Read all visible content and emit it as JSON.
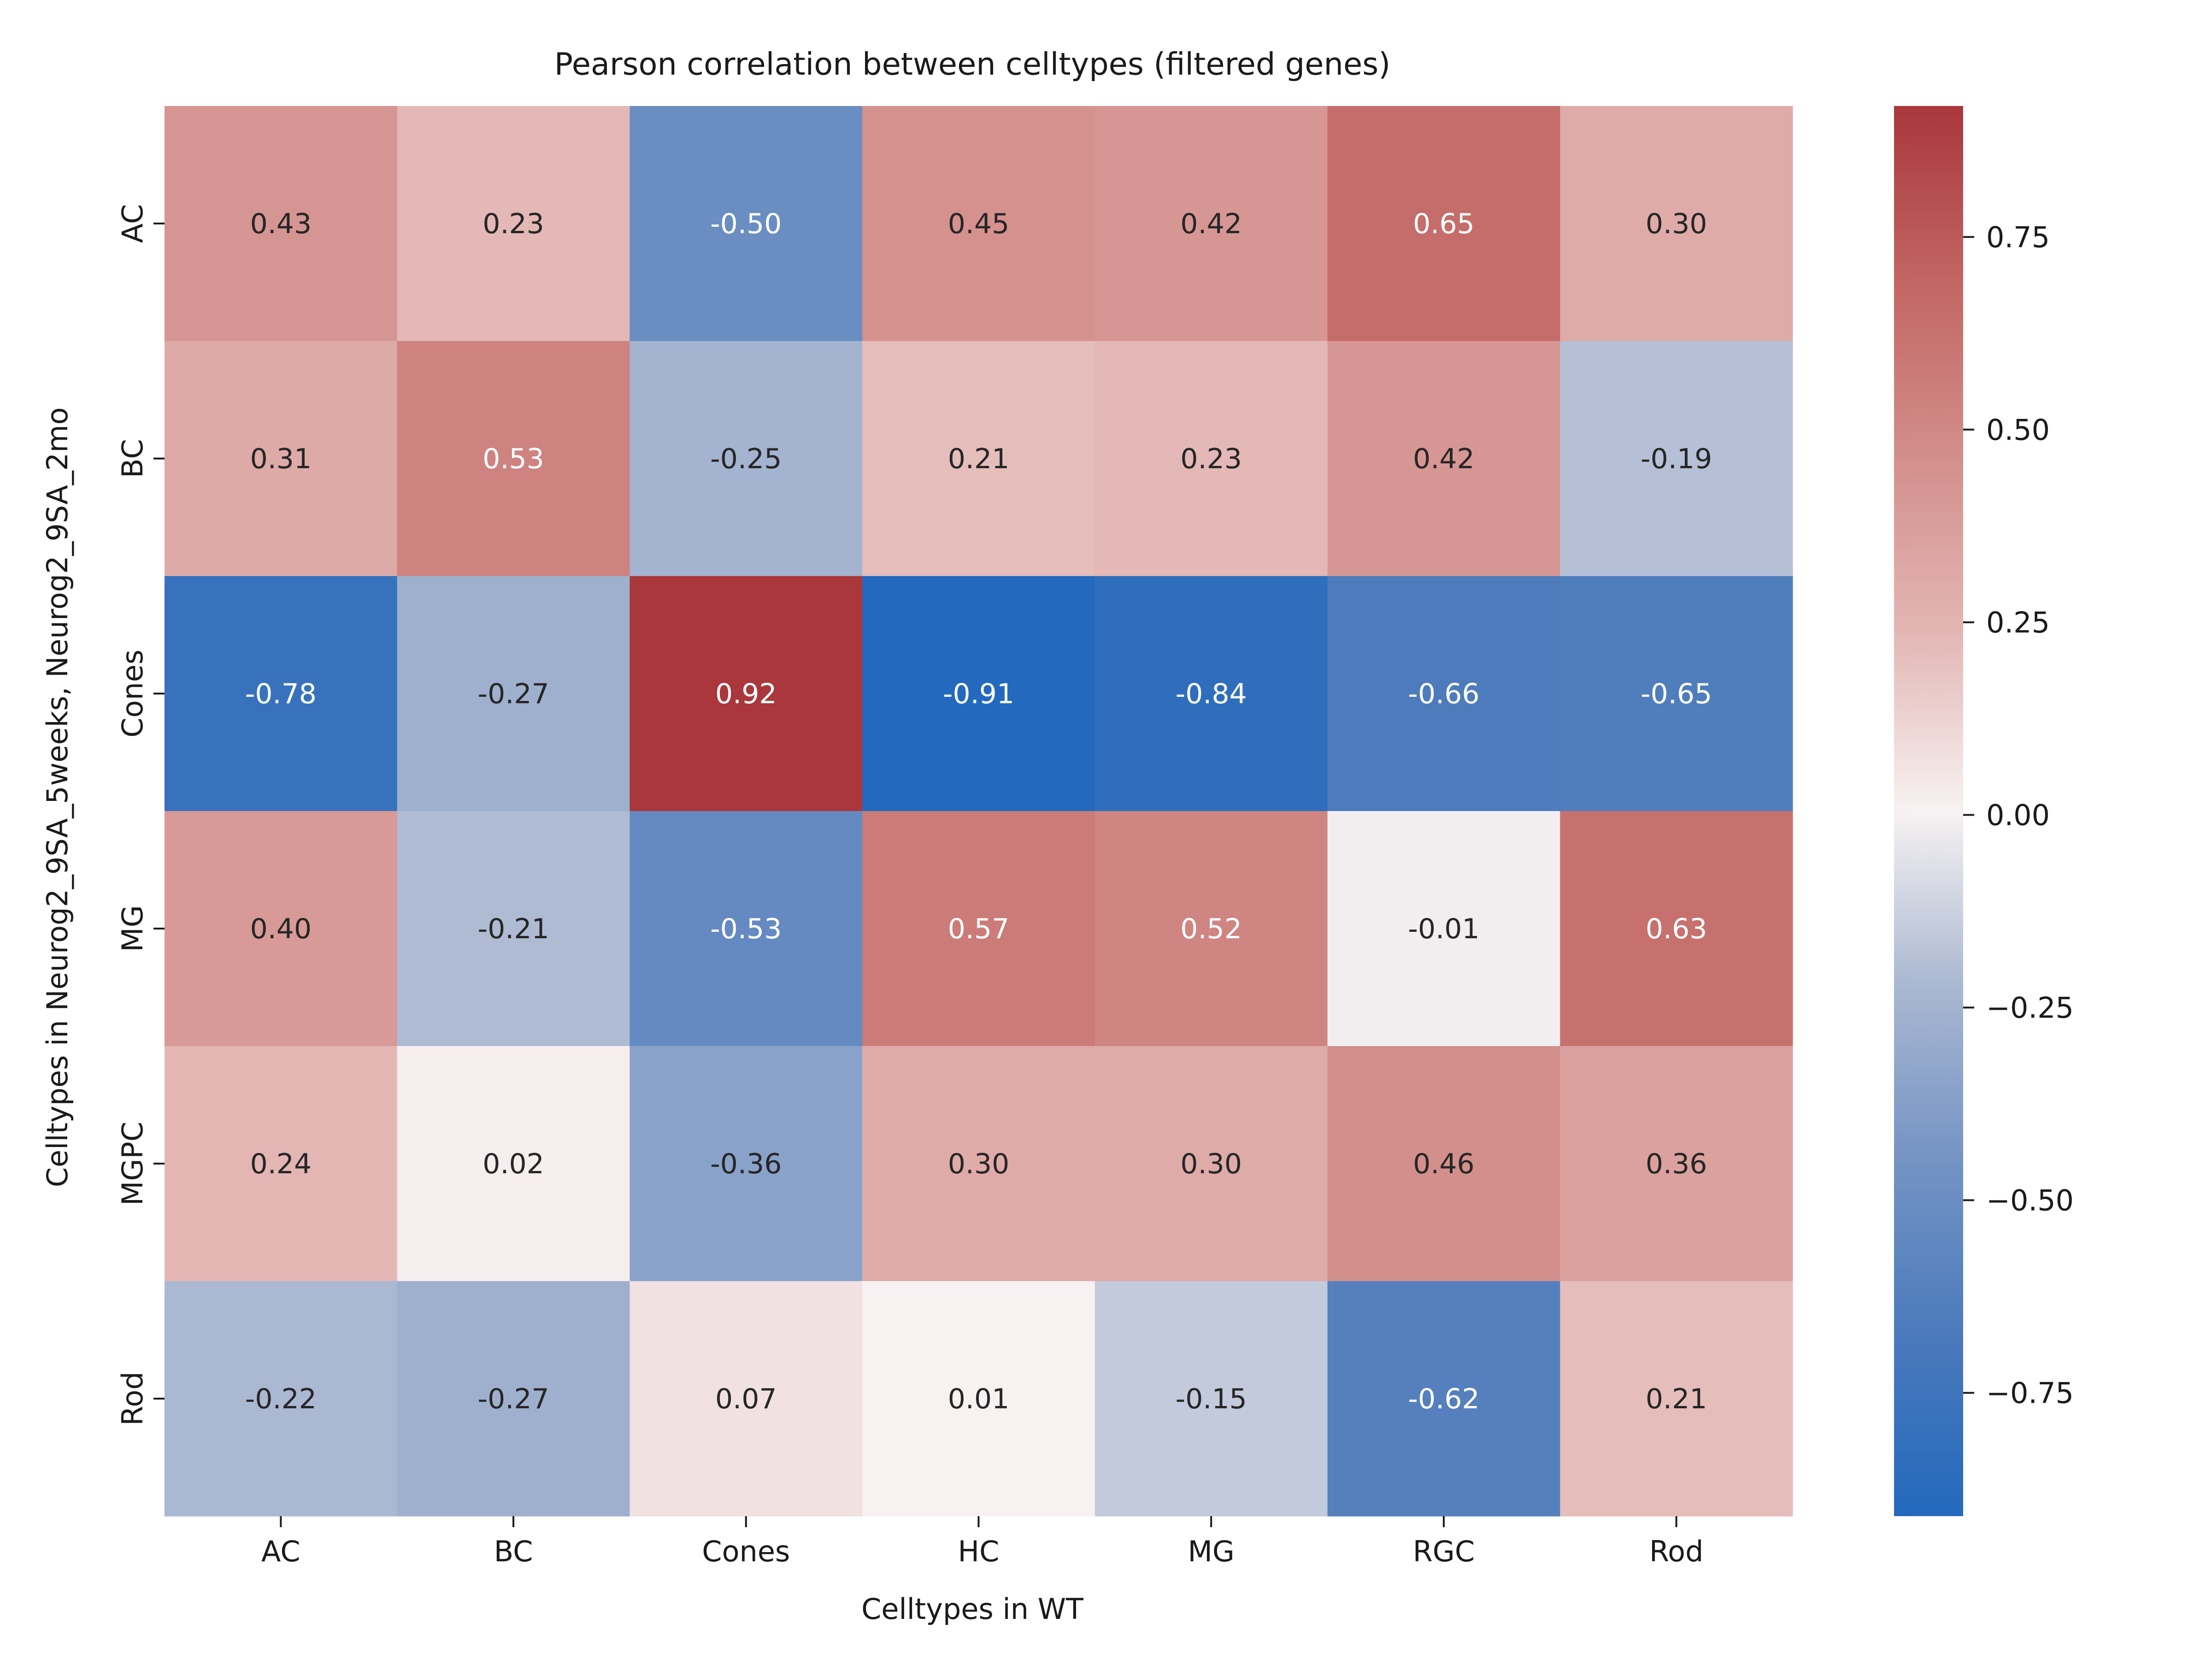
{
  "chart_data": {
    "type": "heatmap",
    "title": "Pearson correlation between celltypes (filtered genes)",
    "xlabel": "Celltypes in WT",
    "ylabel": "Celltypes in Neurog2_9SA_5weeks, Neurog2_9SA_2mo",
    "x_categories": [
      "AC",
      "BC",
      "Cones",
      "HC",
      "MG",
      "RGC",
      "Rod"
    ],
    "y_categories": [
      "AC",
      "BC",
      "Cones",
      "MG",
      "MGPC",
      "Rod"
    ],
    "values": [
      [
        0.43,
        0.23,
        -0.5,
        0.45,
        0.42,
        0.65,
        0.3
      ],
      [
        0.31,
        0.53,
        -0.25,
        0.21,
        0.23,
        0.42,
        -0.19
      ],
      [
        -0.78,
        -0.27,
        0.92,
        -0.91,
        -0.84,
        -0.66,
        -0.65
      ],
      [
        0.4,
        -0.21,
        -0.53,
        0.57,
        0.52,
        -0.01,
        0.63
      ],
      [
        0.24,
        0.02,
        -0.36,
        0.3,
        0.3,
        0.46,
        0.36
      ],
      [
        -0.22,
        -0.27,
        0.07,
        0.01,
        -0.15,
        -0.62,
        0.21
      ]
    ],
    "cell_labels": [
      [
        "0.43",
        "0.23",
        "-0.50",
        "0.45",
        "0.42",
        "0.65",
        "0.30"
      ],
      [
        "0.31",
        "0.53",
        "-0.25",
        "0.21",
        "0.23",
        "0.42",
        "-0.19"
      ],
      [
        "-0.78",
        "-0.27",
        "0.92",
        "-0.91",
        "-0.84",
        "-0.66",
        "-0.65"
      ],
      [
        "0.40",
        "-0.21",
        "-0.53",
        "0.57",
        "0.52",
        "-0.01",
        "0.63"
      ],
      [
        "0.24",
        "0.02",
        "-0.36",
        "0.30",
        "0.30",
        "0.46",
        "0.36"
      ],
      [
        "-0.22",
        "-0.27",
        "0.07",
        "0.01",
        "-0.15",
        "-0.62",
        "0.21"
      ]
    ],
    "colorbar": {
      "vmin": -0.91,
      "vmax": 0.92,
      "ticks": [
        -0.75,
        -0.5,
        -0.25,
        0.0,
        0.25,
        0.5,
        0.75
      ],
      "tick_labels": [
        "−0.75",
        "−0.50",
        "−0.25",
        "0.00",
        "0.25",
        "0.50",
        "0.75"
      ],
      "colormap": "vlag",
      "color_low": "#2369bd",
      "color_mid": "#f7f2f2",
      "color_high": "#a9373b"
    },
    "annotation_light_text_color": "#ffffff",
    "annotation_dark_text_color": "#262626"
  }
}
